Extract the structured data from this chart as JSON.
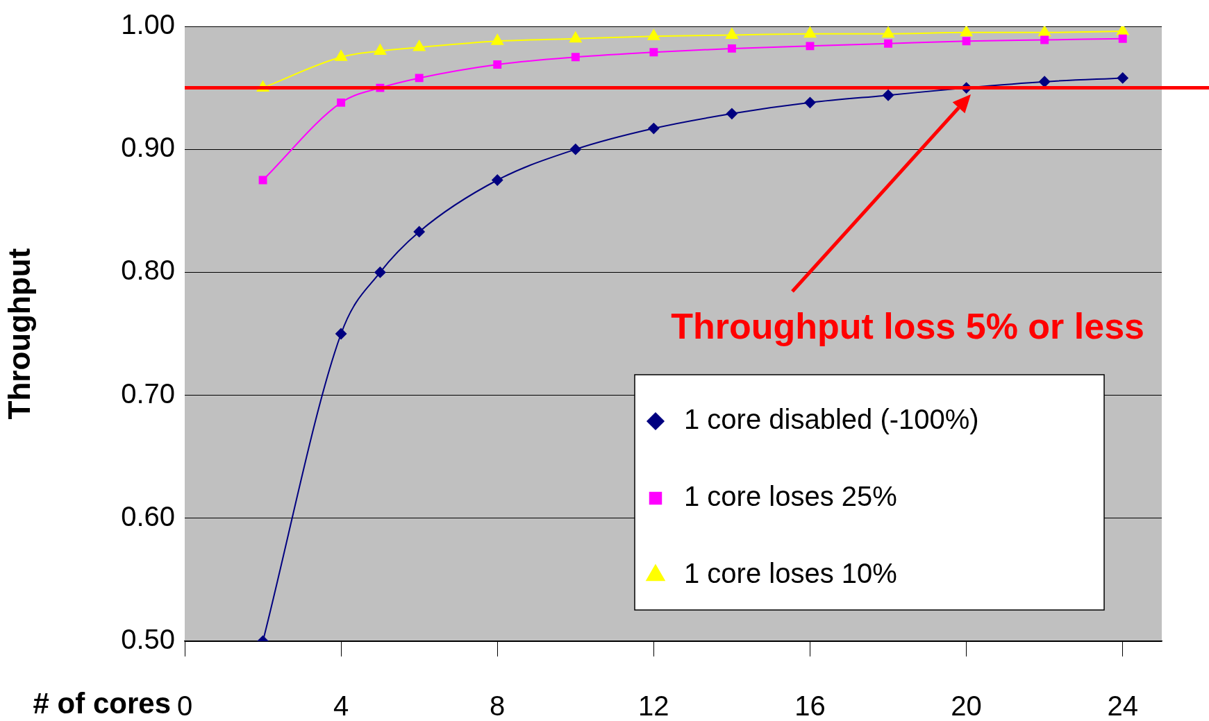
{
  "chart_data": {
    "type": "line",
    "ylabel": "Throughput",
    "xlabel": "# of cores",
    "x": [
      2,
      4,
      5,
      6,
      8,
      10,
      12,
      14,
      16,
      18,
      20,
      22,
      24
    ],
    "series": [
      {
        "name": "1 core disabled (-100%)",
        "color": "#000080",
        "marker": "diamond",
        "values": [
          0.5,
          0.75,
          0.8,
          0.833,
          0.875,
          0.9,
          0.917,
          0.929,
          0.938,
          0.944,
          0.95,
          0.955,
          0.958
        ]
      },
      {
        "name": "1 core loses 25%",
        "color": "#ff00ff",
        "marker": "square",
        "values": [
          0.875,
          0.938,
          0.95,
          0.958,
          0.969,
          0.975,
          0.979,
          0.982,
          0.984,
          0.986,
          0.988,
          0.989,
          0.99
        ]
      },
      {
        "name": "1 core loses 10%",
        "color": "#ffff00",
        "marker": "triangle",
        "values": [
          0.95,
          0.975,
          0.98,
          0.983,
          0.988,
          0.99,
          0.992,
          0.993,
          0.994,
          0.994,
          0.995,
          0.995,
          0.996
        ]
      }
    ],
    "xlim": [
      0,
      25
    ],
    "xticks": [
      0,
      4,
      8,
      12,
      16,
      20,
      24
    ],
    "ylim": [
      0.5,
      1.0
    ],
    "yticks": [
      {
        "value": 0.5,
        "label": "0.50"
      },
      {
        "value": 0.6,
        "label": "0.60"
      },
      {
        "value": 0.7,
        "label": "0.70"
      },
      {
        "value": 0.8,
        "label": "0.80"
      },
      {
        "value": 0.9,
        "label": "0.90"
      },
      {
        "value": 1.0,
        "label": "1.00"
      }
    ],
    "ref_lines": [
      {
        "axis": "y",
        "value": 0.95,
        "color": "#ff0000"
      }
    ],
    "annotations": [
      "Throughput loss 5% or less"
    ],
    "grid": "y",
    "legend": "bottom right"
  }
}
